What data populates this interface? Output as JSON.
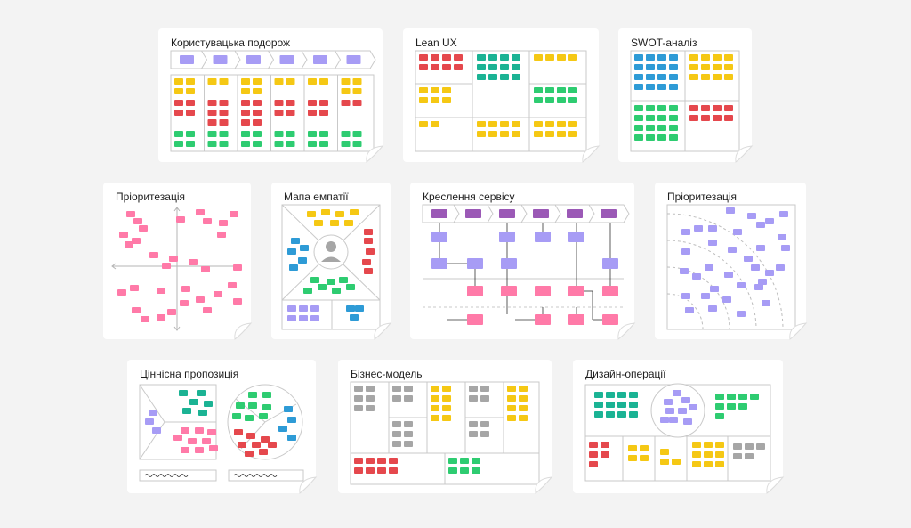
{
  "colors": {
    "yellow": "#f5c814",
    "red": "#e5484d",
    "green": "#2ecc71",
    "teal": "#1bb394",
    "blue": "#2e9bd6",
    "lavender": "#a79cf5",
    "purple": "#9b59b6",
    "pink": "#ff7aa8",
    "gray": "#a6a6a6",
    "line": "#c9c9c9"
  },
  "templates": [
    {
      "id": "journey",
      "title": "Користувацька подорож"
    },
    {
      "id": "lean-ux",
      "title": "Lean UX"
    },
    {
      "id": "swot",
      "title": "SWOT-аналіз"
    },
    {
      "id": "prioritization-matrix",
      "title": "Пріоритезація"
    },
    {
      "id": "empathy-map",
      "title": "Мапа емпатії"
    },
    {
      "id": "service-blueprint",
      "title": "Креслення сервісу"
    },
    {
      "id": "prioritization-radial",
      "title": "Пріоритезація"
    },
    {
      "id": "value-proposition",
      "title": "Ціннісна пропозиція"
    },
    {
      "id": "business-model",
      "title": "Бізнес-модель"
    },
    {
      "id": "design-ops",
      "title": "Дизайн-операції"
    }
  ]
}
